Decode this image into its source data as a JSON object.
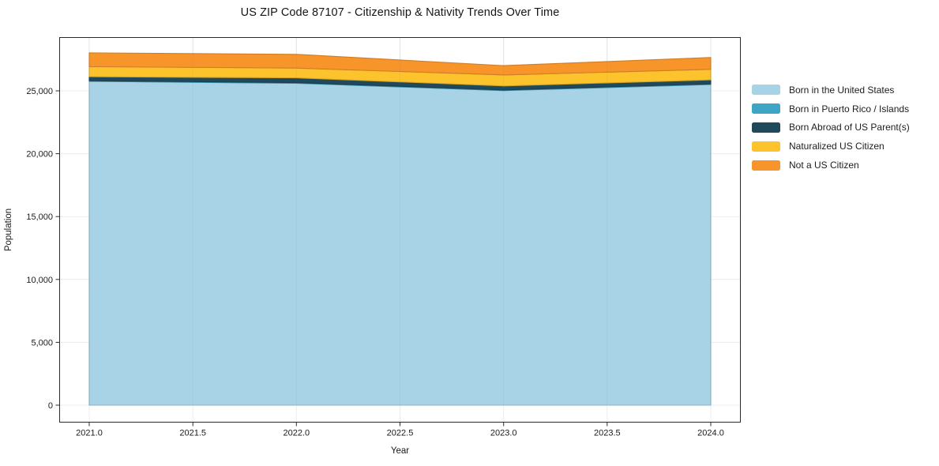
{
  "chart_data": {
    "type": "area",
    "stacked": true,
    "title": "US ZIP Code 87107 - Citizenship & Nativity Trends Over Time",
    "xlabel": "Year",
    "ylabel": "Population",
    "x": [
      2021,
      2022,
      2023,
      2024
    ],
    "series": [
      {
        "name": "Born in the United States",
        "color": "#a8d3e6",
        "values": [
          25750,
          25600,
          25020,
          25500
        ]
      },
      {
        "name": "Born in Puerto Rico / Islands",
        "color": "#3ea6c4",
        "values": [
          50,
          50,
          50,
          50
        ]
      },
      {
        "name": "Born Abroad of US Parent(s)",
        "color": "#20495c",
        "values": [
          320,
          380,
          320,
          320
        ]
      },
      {
        "name": "Naturalized US Citizen",
        "color": "#fcc32d",
        "values": [
          800,
          780,
          870,
          840
        ]
      },
      {
        "name": "Not a US Citizen",
        "color": "#f7952b",
        "values": [
          1100,
          1090,
          740,
          940
        ]
      }
    ],
    "totals": [
      28020,
      27900,
      27000,
      27650
    ],
    "xticks": [
      {
        "v": 2021.0,
        "label": "2021.0"
      },
      {
        "v": 2021.5,
        "label": "2021.5"
      },
      {
        "v": 2022.0,
        "label": "2022.0"
      },
      {
        "v": 2022.5,
        "label": "2022.5"
      },
      {
        "v": 2023.0,
        "label": "2023.0"
      },
      {
        "v": 2023.5,
        "label": "2023.5"
      },
      {
        "v": 2024.0,
        "label": "2024.0"
      }
    ],
    "yticks": [
      {
        "v": 0,
        "label": "0"
      },
      {
        "v": 5000,
        "label": "5,000"
      },
      {
        "v": 10000,
        "label": "10,000"
      },
      {
        "v": 15000,
        "label": "15,000"
      },
      {
        "v": 20000,
        "label": "20,000"
      },
      {
        "v": 25000,
        "label": "25,000"
      }
    ],
    "xlim": [
      2020.855,
      2024.145
    ],
    "ylim": [
      -1385,
      29270
    ],
    "grid": true,
    "legend_position": "right"
  }
}
